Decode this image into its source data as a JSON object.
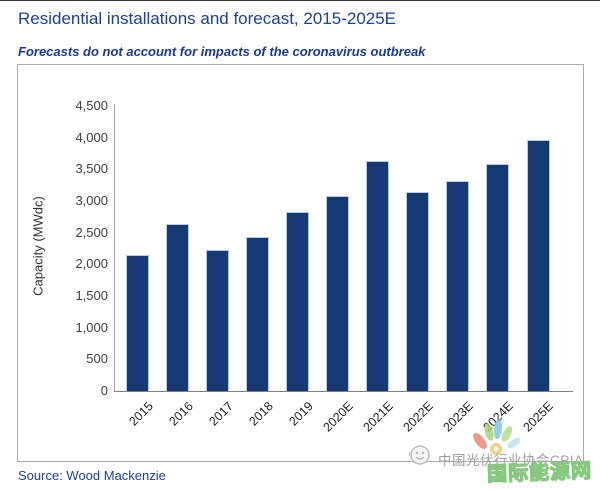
{
  "header": {
    "title": "Residential installations and forecast, 2015-2025E",
    "subtitle": "Forecasts do not account for impacts of the coronavirus outbreak"
  },
  "footer": {
    "source": "Source: Wood Mackenzie"
  },
  "watermark": {
    "cpia": "中国光伏行业协会CPIA",
    "energy_net": "国际能源网"
  },
  "colors": {
    "accent_blue": "#1b40a0",
    "bar_navy": "#153a73",
    "axis_gray": "#a8a8a8",
    "watermark_gray": "#9e9e9e",
    "watermark_green": "#86c97e"
  },
  "chart_data": {
    "type": "bar",
    "title": "Residential installations and forecast, 2015-2025E",
    "categories": [
      "2015",
      "2016",
      "2017",
      "2018",
      "2019",
      "2020E",
      "2021E",
      "2022E",
      "2023E",
      "2024E",
      "2025E"
    ],
    "values": [
      2150,
      2640,
      2230,
      2430,
      2820,
      3080,
      3630,
      3150,
      3320,
      3590,
      3960
    ],
    "xlabel": "",
    "ylabel": "Capacity (MWdc)",
    "ylim": [
      0,
      4500
    ],
    "ytick_step": 500,
    "yticks": [
      "0",
      "500",
      "1,000",
      "1,500",
      "2,000",
      "2,500",
      "3,000",
      "3,500",
      "4,000",
      "4,500"
    ],
    "grid": false,
    "legend_position": "none",
    "bar_color": "#153a73"
  }
}
